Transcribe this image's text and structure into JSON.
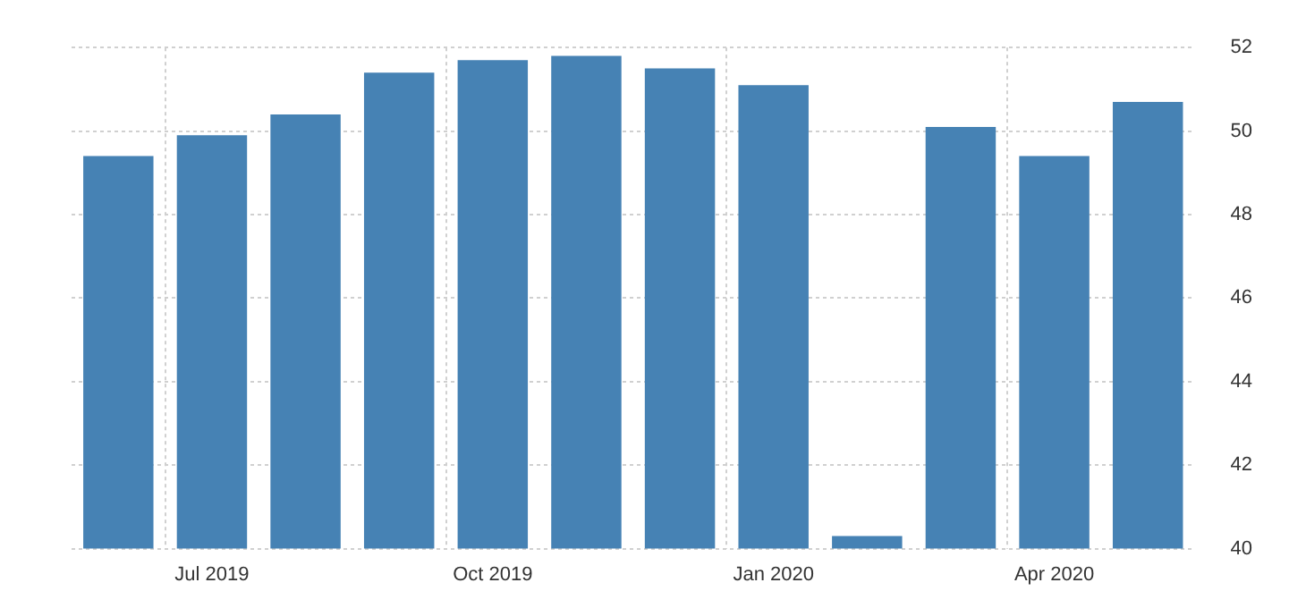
{
  "chart_data": {
    "type": "bar",
    "categories": [
      null,
      "Jul 2019",
      null,
      null,
      "Oct 2019",
      null,
      null,
      "Jan 2020",
      null,
      null,
      "Apr 2020",
      null
    ],
    "values": [
      49.4,
      49.9,
      50.4,
      51.4,
      51.7,
      51.8,
      51.5,
      51.1,
      40.3,
      50.1,
      49.4,
      50.7
    ],
    "color": "#4682b4",
    "ylim": [
      40,
      52
    ],
    "yticks": [
      40,
      42,
      44,
      46,
      48,
      50,
      52
    ],
    "grid": true
  }
}
